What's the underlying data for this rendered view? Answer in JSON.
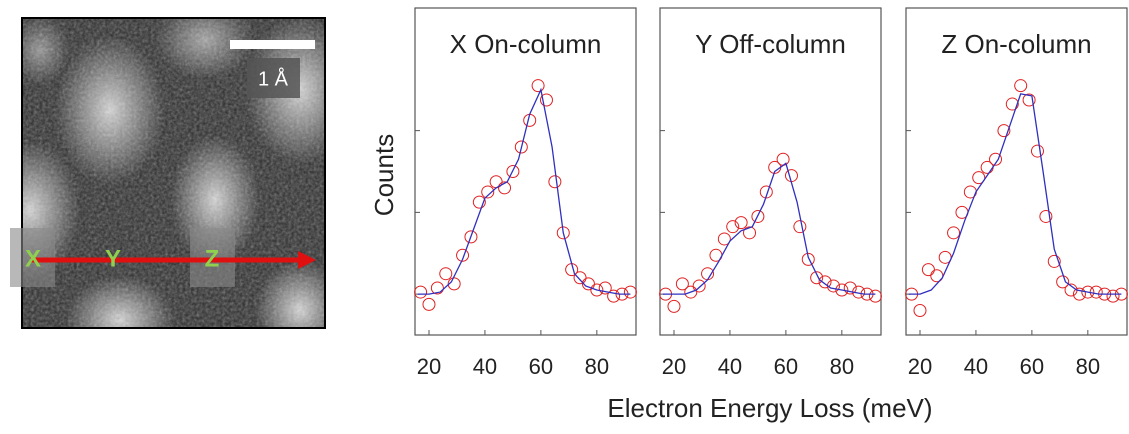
{
  "image_panel": {
    "scale_label": "1 Å",
    "markers": [
      "X",
      "Y",
      "Z"
    ]
  },
  "figure": {
    "xlabel": "Electron Energy Loss (meV)",
    "ylabel": "Counts"
  },
  "chart_data": [
    {
      "type": "scatter",
      "title": "X On-column",
      "xlim": [
        15,
        94
      ],
      "xticks": [
        20,
        40,
        60,
        80
      ],
      "ylim": [
        -0.2,
        1.4
      ],
      "yticks": [
        0,
        0.4,
        0.8
      ],
      "series": [
        {
          "type": "scatter",
          "color": "#e02020",
          "x": [
            17,
            20,
            23,
            26,
            29,
            32,
            35,
            38,
            41,
            44,
            47,
            50,
            53,
            56,
            59,
            62,
            65,
            68,
            71,
            74,
            77,
            80,
            83,
            86,
            89,
            92
          ],
          "values": [
            0.01,
            -0.05,
            0.03,
            0.1,
            0.05,
            0.19,
            0.28,
            0.45,
            0.5,
            0.55,
            0.52,
            0.6,
            0.72,
            0.85,
            1.02,
            0.95,
            0.55,
            0.3,
            0.12,
            0.08,
            0.05,
            0.02,
            0.03,
            -0.01,
            0.0,
            0.01
          ]
        },
        {
          "type": "line",
          "color": "#3030c0",
          "x": [
            16,
            20,
            24,
            28,
            32,
            36,
            40,
            44,
            48,
            52,
            56,
            60,
            64,
            68,
            72,
            76,
            80,
            84,
            88,
            92
          ],
          "values": [
            0,
            0,
            0.01,
            0.06,
            0.17,
            0.32,
            0.47,
            0.52,
            0.55,
            0.66,
            0.88,
            1.0,
            0.72,
            0.3,
            0.1,
            0.04,
            0.02,
            0.01,
            0,
            0
          ]
        }
      ]
    },
    {
      "type": "scatter",
      "title": "Y Off-column",
      "xlim": [
        15,
        94
      ],
      "xticks": [
        20,
        40,
        60,
        80
      ],
      "ylim": [
        -0.2,
        1.4
      ],
      "yticks": [
        0,
        0.4,
        0.8
      ],
      "series": [
        {
          "type": "scatter",
          "color": "#e02020",
          "x": [
            17,
            20,
            23,
            26,
            29,
            32,
            35,
            38,
            41,
            44,
            47,
            50,
            53,
            56,
            59,
            62,
            65,
            68,
            71,
            74,
            77,
            80,
            83,
            86,
            89,
            92
          ],
          "values": [
            0.0,
            -0.06,
            0.05,
            0.01,
            0.04,
            0.1,
            0.19,
            0.27,
            0.33,
            0.35,
            0.3,
            0.38,
            0.5,
            0.62,
            0.66,
            0.58,
            0.33,
            0.17,
            0.08,
            0.06,
            0.04,
            0.02,
            0.03,
            0.01,
            0.0,
            -0.01
          ]
        },
        {
          "type": "line",
          "color": "#3030c0",
          "x": [
            16,
            20,
            24,
            28,
            32,
            36,
            40,
            44,
            48,
            52,
            56,
            60,
            64,
            68,
            72,
            76,
            80,
            84,
            88,
            92
          ],
          "values": [
            0,
            0,
            0,
            0.02,
            0.07,
            0.16,
            0.26,
            0.31,
            0.33,
            0.44,
            0.6,
            0.64,
            0.45,
            0.18,
            0.07,
            0.03,
            0.02,
            0.01,
            0,
            0
          ]
        }
      ]
    },
    {
      "type": "scatter",
      "title": "Z On-column",
      "xlim": [
        15,
        94
      ],
      "xticks": [
        20,
        40,
        60,
        80
      ],
      "ylim": [
        -0.2,
        1.4
      ],
      "yticks": [
        0,
        0.4,
        0.8
      ],
      "series": [
        {
          "type": "scatter",
          "color": "#e02020",
          "x": [
            17,
            20,
            23,
            26,
            29,
            32,
            35,
            38,
            41,
            44,
            47,
            50,
            53,
            56,
            59,
            62,
            65,
            68,
            71,
            74,
            77,
            80,
            83,
            86,
            89,
            92
          ],
          "values": [
            0.0,
            -0.08,
            0.12,
            0.09,
            0.18,
            0.3,
            0.4,
            0.5,
            0.57,
            0.62,
            0.66,
            0.8,
            0.93,
            1.02,
            0.95,
            0.7,
            0.38,
            0.16,
            0.06,
            0.02,
            0.0,
            0.01,
            0.01,
            0.0,
            -0.01,
            0.0
          ]
        },
        {
          "type": "line",
          "color": "#3030c0",
          "x": [
            16,
            20,
            24,
            28,
            32,
            36,
            40,
            44,
            48,
            52,
            56,
            60,
            64,
            68,
            72,
            76,
            80,
            84,
            88,
            92
          ],
          "values": [
            0,
            0,
            0.02,
            0.08,
            0.2,
            0.36,
            0.5,
            0.58,
            0.66,
            0.82,
            0.98,
            0.97,
            0.6,
            0.22,
            0.06,
            0.02,
            0.01,
            0,
            0,
            0
          ]
        }
      ]
    }
  ]
}
